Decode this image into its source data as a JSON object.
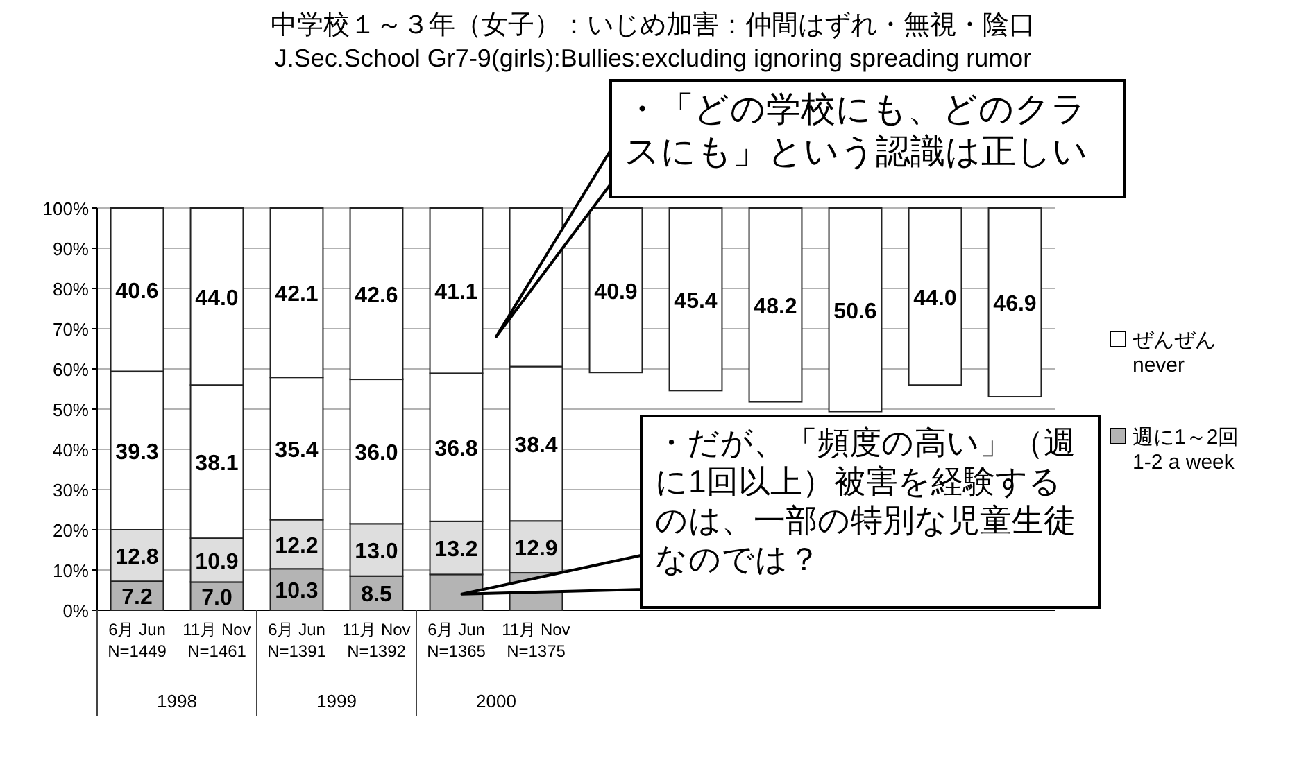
{
  "chart_data": {
    "type": "bar",
    "title": "中学校１～３年（女子）：いじめ加害：仲間はずれ・無視・陰口",
    "subtitle": "J.Sec.School Gr7-9(girls):Bullies:excluding ignoring spreading rumor",
    "categories": [
      "6月 Jun\nN=1449",
      "11月 Nov\nN=1461",
      "6月 Jun\nN=1391",
      "11月 Nov\nN=1392",
      "6月 Jun\nN=1365",
      "11月 Nov\nN=1375",
      null,
      null,
      null,
      null,
      null,
      null
    ],
    "series": [
      {
        "name": "週に1～2回\n1-2 a week",
        "color": "#b4b4b4",
        "values": [
          7.2,
          7.0,
          10.3,
          8.5,
          8.9,
          9.3,
          null,
          null,
          null,
          null,
          null,
          null
        ],
        "base": [
          0,
          0,
          0,
          0,
          0,
          0,
          null,
          null,
          null,
          null,
          null,
          null
        ],
        "value_labels": [
          "7.2",
          "7.0",
          "10.3",
          "8.5",
          null,
          null,
          null,
          null,
          null,
          null,
          null,
          null
        ]
      },
      {
        "color": "#dedede",
        "values": [
          12.8,
          10.9,
          12.2,
          13.0,
          13.2,
          12.9,
          null,
          null,
          null,
          null,
          null,
          null
        ],
        "base": [
          7.2,
          7.0,
          10.3,
          8.5,
          8.9,
          9.3,
          null,
          null,
          null,
          null,
          null,
          null
        ],
        "value_labels": [
          "12.8",
          "10.9",
          "12.2",
          "13.0",
          "13.2",
          "12.9",
          null,
          null,
          null,
          null,
          null,
          null
        ]
      },
      {
        "color": "#ffffff",
        "values": [
          39.3,
          38.1,
          35.4,
          36.0,
          36.8,
          38.4,
          null,
          null,
          null,
          null,
          null,
          null
        ],
        "base": [
          20.0,
          17.9,
          22.5,
          21.5,
          22.1,
          22.2,
          null,
          null,
          null,
          null,
          null,
          null
        ],
        "value_labels": [
          "39.3",
          "38.1",
          "35.4",
          "36.0",
          "36.8",
          "38.4",
          null,
          null,
          null,
          null,
          null,
          null
        ]
      },
      {
        "name": "ぜんぜん\nnever",
        "color": "#ffffff",
        "values": [
          40.6,
          44.0,
          42.1,
          42.6,
          41.1,
          39.4,
          40.9,
          45.4,
          48.2,
          50.6,
          44.0,
          46.9
        ],
        "base": [
          59.4,
          56.0,
          57.9,
          57.4,
          58.9,
          60.6,
          59.1,
          54.6,
          51.8,
          49.4,
          56.0,
          53.1
        ],
        "value_labels": [
          "40.6",
          "44.0",
          "42.1",
          "42.6",
          "41.1",
          null,
          "40.9",
          "45.4",
          "48.2",
          "50.6",
          "44.0",
          "46.9"
        ]
      }
    ],
    "ylim": [
      0,
      100
    ],
    "yticks": [
      {
        "value": 0,
        "label": "0%"
      },
      {
        "value": 10,
        "label": "10%"
      },
      {
        "value": 20,
        "label": "20%"
      },
      {
        "value": 30,
        "label": "30%"
      },
      {
        "value": 40,
        "label": "40%"
      },
      {
        "value": 50,
        "label": "50%"
      },
      {
        "value": 60,
        "label": "60%"
      },
      {
        "value": 70,
        "label": "70%"
      },
      {
        "value": 80,
        "label": "80%"
      },
      {
        "value": 90,
        "label": "90%"
      },
      {
        "value": 100,
        "label": "100%"
      }
    ],
    "grid": "y",
    "legend": "right",
    "annotations": [
      "・「どの学校にも、どのクラスにも」という認識は正しい",
      "・だが、「頻度の高い」（週に1回以上）被害を経験するのは、一部の特別な児童生徒なのでは？",
      "1998",
      "1999",
      "2000"
    ]
  }
}
